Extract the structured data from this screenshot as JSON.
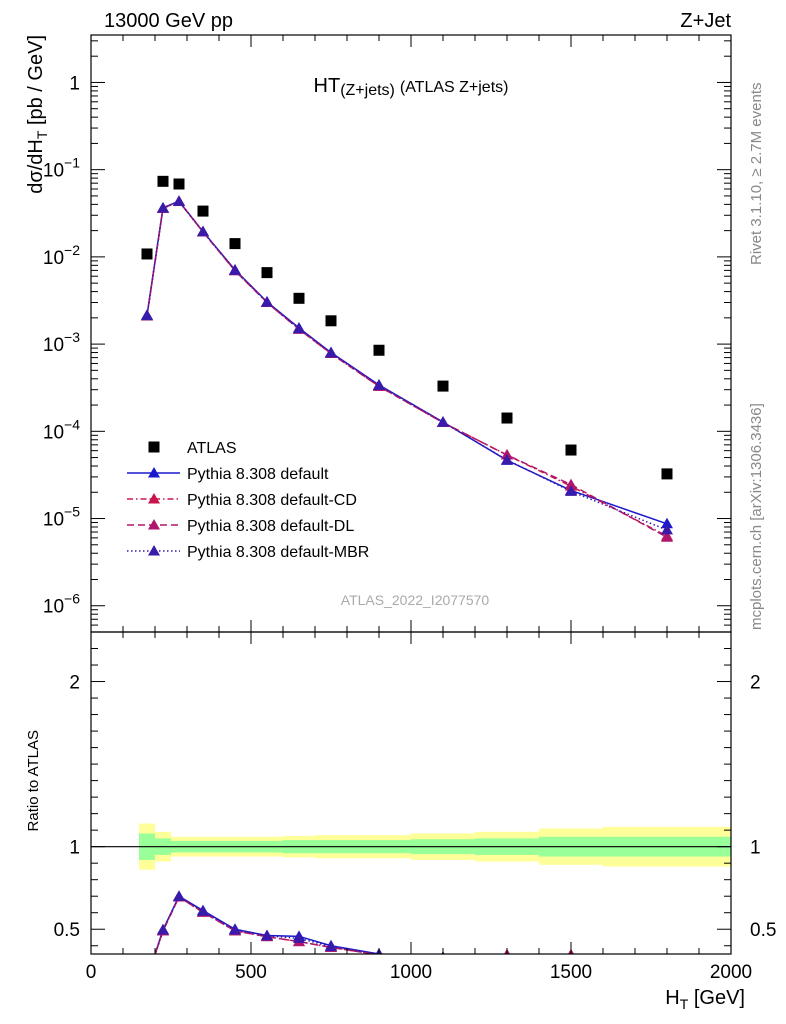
{
  "header": {
    "left": "13000 GeV pp",
    "right": "Z+Jet",
    "side_top": "Rivet 3.1.10, ≥ 2.7M events",
    "side_bottom": "mcplots.cern.ch [arXiv:1306.3436]",
    "watermark": "ATLAS_2022_I2077570"
  },
  "chart_data": {
    "type": "scatter",
    "title": "HT",
    "title_sub": "(Z+jets)",
    "title_rest": "(ATLAS Z+jets)",
    "ylabel_main": "dσ/dH",
    "ylabel_sub": "T",
    "ylabel_rest": " [pb / GeV]",
    "ylabel_ratio": "Ratio to ATLAS",
    "xlabel_main": "H",
    "xlabel_sub": "T",
    "xlabel_rest": " [GeV]",
    "xlim": [
      0,
      2000
    ],
    "ylim": [
      5e-07,
      3.5
    ],
    "yscale": "log",
    "ratio_ylim": [
      0.35,
      2.3
    ],
    "x_ticks": [
      {
        "v": 0,
        "t": "0"
      },
      {
        "v": 500,
        "t": "500"
      },
      {
        "v": 1000,
        "t": "1000"
      },
      {
        "v": 1500,
        "t": "1500"
      },
      {
        "v": 2000,
        "t": "2000"
      }
    ],
    "y_ticks": [
      {
        "v": 1,
        "b": "1",
        "e": ""
      },
      {
        "v": 0.1,
        "b": "10",
        "e": "−1"
      },
      {
        "v": 0.01,
        "b": "10",
        "e": "−2"
      },
      {
        "v": 0.001,
        "b": "10",
        "e": "−3"
      },
      {
        "v": 0.0001,
        "b": "10",
        "e": "−4"
      },
      {
        "v": 1e-05,
        "b": "10",
        "e": "−5"
      },
      {
        "v": 1e-06,
        "b": "10",
        "e": "−6"
      }
    ],
    "ratio_ticks": [
      {
        "v": 0.5,
        "t": "0.5"
      },
      {
        "v": 1,
        "t": "1"
      },
      {
        "v": 2,
        "t": "2"
      }
    ],
    "legend_position": "lower-left",
    "data": {
      "name": "ATLAS",
      "x": [
        175,
        225,
        275,
        350,
        450,
        550,
        650,
        750,
        900,
        1100,
        1300,
        1500,
        1800
      ],
      "y": [
        0.0108,
        0.0735,
        0.0685,
        0.0335,
        0.0142,
        0.0066,
        0.00335,
        0.00185,
        0.00085,
        0.00033,
        0.000142,
        6.1e-05,
        3.25e-05
      ]
    },
    "bin_edges": [
      150,
      200,
      250,
      300,
      400,
      500,
      600,
      700,
      800,
      1000,
      1200,
      1400,
      1600,
      2000
    ],
    "band_stat": [
      0.08,
      0.05,
      0.035,
      0.035,
      0.035,
      0.035,
      0.04,
      0.04,
      0.04,
      0.045,
      0.05,
      0.06,
      0.06
    ],
    "band_total": [
      0.14,
      0.09,
      0.06,
      0.06,
      0.06,
      0.06,
      0.065,
      0.07,
      0.07,
      0.08,
      0.09,
      0.11,
      0.12
    ],
    "series": [
      {
        "name": "Pythia 8.308 default",
        "color": "#1a1acc",
        "dash": "",
        "x": [
          175,
          225,
          275,
          350,
          450,
          550,
          650,
          750,
          900,
          1100,
          1300,
          1500,
          1800
        ],
        "y": [
          0.00215,
          0.0365,
          0.0435,
          0.0195,
          0.0071,
          0.00305,
          0.00153,
          0.0008,
          0.00034,
          0.000128,
          4.65e-05,
          2.1e-05,
          8.7e-06
        ],
        "ratio": [
          0.2,
          0.497,
          0.7,
          0.613,
          0.5,
          0.462,
          0.457,
          0.4,
          0.35,
          0.33,
          0.31,
          0.3,
          0.28
        ]
      },
      {
        "name": "Pythia 8.308 default-CD",
        "color": "#c8164c",
        "dash": "6,3,1.5,3",
        "x": [
          175,
          225,
          275,
          350,
          450,
          550,
          650,
          750,
          900,
          1100,
          1300,
          1500,
          1800
        ],
        "y": [
          0.0021,
          0.036,
          0.0432,
          0.0193,
          0.00695,
          0.003,
          0.00148,
          0.00078,
          0.000328,
          0.000126,
          5.35e-05,
          2.35e-05,
          6.3e-06
        ],
        "ratio": [
          0.2,
          0.49,
          0.695,
          0.603,
          0.49,
          0.455,
          0.425,
          0.39,
          0.345,
          0.33,
          0.345,
          0.345,
          0.28
        ]
      },
      {
        "name": "Pythia 8.308 default-DL",
        "color": "#b0166c",
        "dash": "7,4",
        "x": [
          175,
          225,
          275,
          350,
          450,
          550,
          650,
          750,
          900,
          1100,
          1300,
          1500,
          1800
        ],
        "y": [
          0.0021,
          0.036,
          0.0432,
          0.0193,
          0.00693,
          0.003,
          0.00148,
          0.00078,
          0.000328,
          0.000126,
          5.35e-05,
          2.45e-05,
          6.1e-06
        ],
        "ratio": [
          0.2,
          0.49,
          0.695,
          0.603,
          0.49,
          0.455,
          0.425,
          0.39,
          0.345,
          0.33,
          0.345,
          0.345,
          0.28
        ]
      },
      {
        "name": "Pythia 8.308 default-MBR",
        "color": "#3a1aa8",
        "dash": "1.5,2.5",
        "x": [
          175,
          225,
          275,
          350,
          450,
          550,
          650,
          750,
          900,
          1100,
          1300,
          1500,
          1800
        ],
        "y": [
          0.00212,
          0.0362,
          0.0433,
          0.0194,
          0.007,
          0.00302,
          0.0015,
          0.00079,
          0.000335,
          0.000127,
          4.7e-05,
          2.05e-05,
          7.4e-06
        ],
        "ratio": [
          0.2,
          0.495,
          0.698,
          0.608,
          0.495,
          0.46,
          0.445,
          0.395,
          0.348,
          0.33,
          0.32,
          0.3,
          0.28
        ]
      }
    ]
  }
}
